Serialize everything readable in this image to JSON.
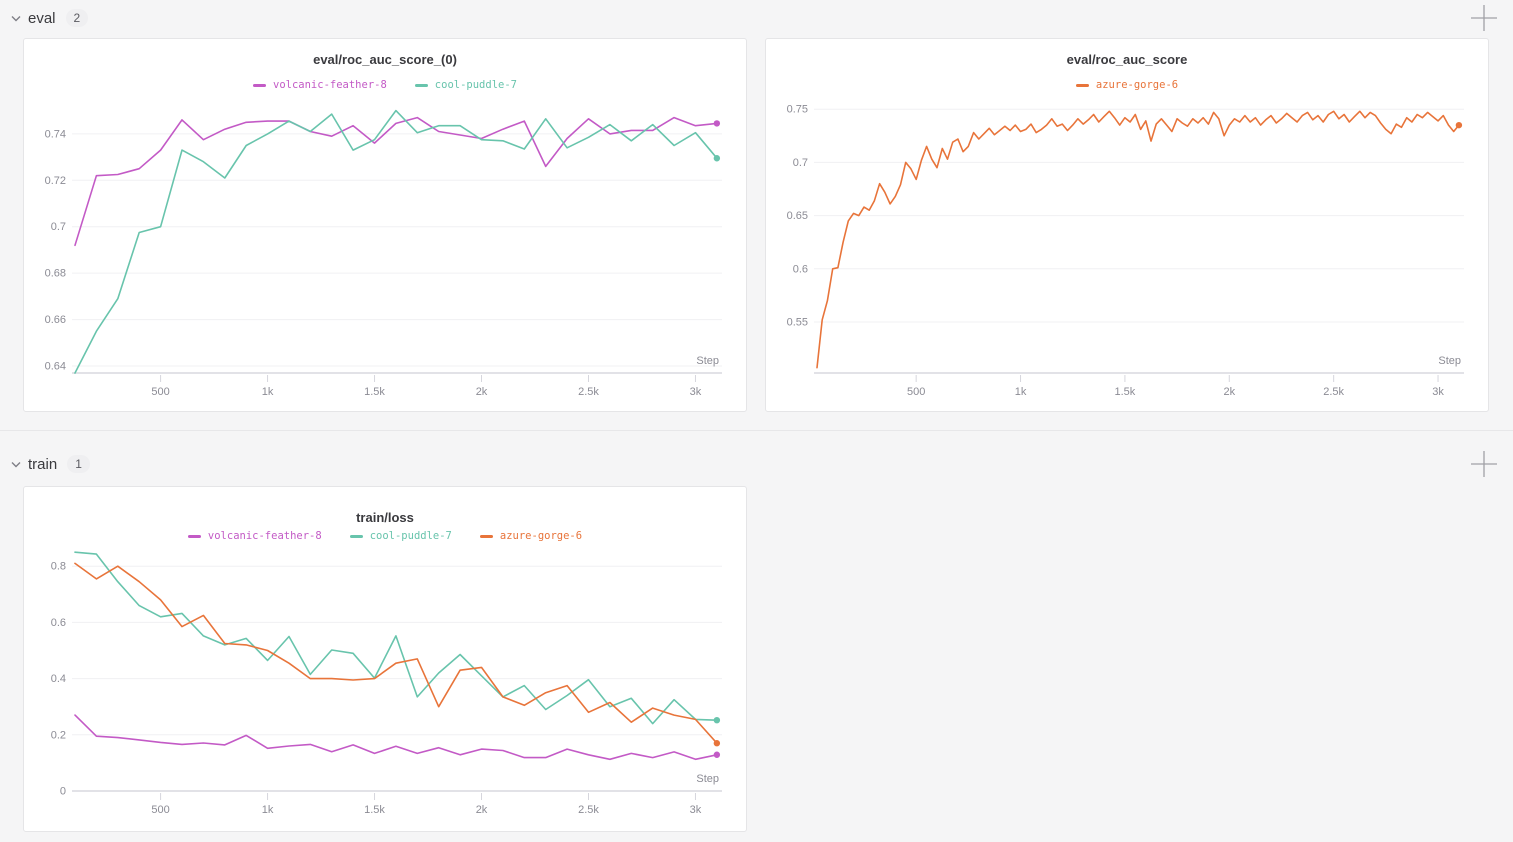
{
  "theme": {
    "page_bg": "#f5f5f6",
    "panel_bg": "#ffffff",
    "panel_border": "#e5e5e7",
    "grid_color": "#f0f0f3",
    "axis_color": "#e2e2e7",
    "tick_mark_color": "#d6d6dd",
    "tick_label_color": "#8b8b94",
    "title_color": "#3a3a3e",
    "badge_bg": "#efeff1",
    "icon_color": "#9b9ba1"
  },
  "icons": {
    "section_collapse": "chevron-down-icon",
    "section_add": "plus-icon"
  },
  "sections": [
    {
      "label": "eval",
      "count": "2"
    },
    {
      "label": "train",
      "count": "1"
    }
  ],
  "chart_data": [
    {
      "type": "line",
      "title": "eval/roc_auc_score_(0)",
      "xlabel": "Step",
      "ylabel": "",
      "grid": true,
      "legend_position": "top",
      "xlim": [
        100,
        3110
      ],
      "ylim": [
        0.637,
        0.752
      ],
      "xticks": [
        {
          "v": 500,
          "label": "500"
        },
        {
          "v": 1000,
          "label": "1k"
        },
        {
          "v": 1500,
          "label": "1.5k"
        },
        {
          "v": 2000,
          "label": "2k"
        },
        {
          "v": 2500,
          "label": "2.5k"
        },
        {
          "v": 3000,
          "label": "3k"
        }
      ],
      "yticks": [
        {
          "v": 0.64,
          "label": "0.64"
        },
        {
          "v": 0.66,
          "label": "0.66"
        },
        {
          "v": 0.68,
          "label": "0.68"
        },
        {
          "v": 0.7,
          "label": "0.7"
        },
        {
          "v": 0.72,
          "label": "0.72"
        },
        {
          "v": 0.74,
          "label": "0.74"
        }
      ],
      "x": [
        100,
        200,
        300,
        400,
        500,
        600,
        700,
        800,
        900,
        1000,
        1100,
        1200,
        1300,
        1400,
        1500,
        1600,
        1700,
        1800,
        1900,
        2000,
        2100,
        2200,
        2300,
        2400,
        2500,
        2600,
        2700,
        2800,
        2900,
        3000,
        3100
      ],
      "series": [
        {
          "name": "volcanic-feather-8",
          "color": "#C35AC6",
          "values": [
            0.692,
            0.722,
            0.7225,
            0.725,
            0.733,
            0.746,
            0.7375,
            0.742,
            0.745,
            0.7455,
            0.7455,
            0.741,
            0.739,
            0.7435,
            0.736,
            0.7445,
            0.747,
            0.741,
            0.7395,
            0.738,
            0.742,
            0.7455,
            0.726,
            0.738,
            0.7465,
            0.74,
            0.7415,
            0.7415,
            0.747,
            0.7435,
            0.7445
          ]
        },
        {
          "name": "cool-puddle-7",
          "color": "#68C4AC",
          "values": [
            0.637,
            0.655,
            0.669,
            0.6975,
            0.7,
            0.733,
            0.728,
            0.721,
            0.735,
            0.74,
            0.7455,
            0.741,
            0.7485,
            0.733,
            0.7375,
            0.75,
            0.7405,
            0.7435,
            0.7435,
            0.7375,
            0.737,
            0.7335,
            0.7465,
            0.734,
            0.7385,
            0.744,
            0.737,
            0.744,
            0.735,
            0.7405,
            0.7295
          ]
        }
      ]
    },
    {
      "type": "line",
      "title": "eval/roc_auc_score",
      "xlabel": "Step",
      "ylabel": "",
      "grid": true,
      "legend_position": "top",
      "xlim": [
        25,
        3110
      ],
      "ylim": [
        0.502,
        0.753
      ],
      "xticks": [
        {
          "v": 500,
          "label": "500"
        },
        {
          "v": 1000,
          "label": "1k"
        },
        {
          "v": 1500,
          "label": "1.5k"
        },
        {
          "v": 2000,
          "label": "2k"
        },
        {
          "v": 2500,
          "label": "2.5k"
        },
        {
          "v": 3000,
          "label": "3k"
        }
      ],
      "yticks": [
        {
          "v": 0.55,
          "label": "0.55"
        },
        {
          "v": 0.6,
          "label": "0.6"
        },
        {
          "v": 0.65,
          "label": "0.65"
        },
        {
          "v": 0.7,
          "label": "0.7"
        },
        {
          "v": 0.75,
          "label": "0.75"
        }
      ],
      "x": [
        25,
        50,
        75,
        100,
        125,
        150,
        175,
        200,
        225,
        250,
        275,
        300,
        325,
        350,
        375,
        400,
        425,
        450,
        475,
        500,
        525,
        550,
        575,
        600,
        625,
        650,
        675,
        700,
        725,
        750,
        775,
        800,
        825,
        850,
        875,
        900,
        925,
        950,
        975,
        1000,
        1025,
        1050,
        1075,
        1100,
        1125,
        1150,
        1175,
        1200,
        1225,
        1250,
        1275,
        1300,
        1325,
        1350,
        1375,
        1400,
        1425,
        1450,
        1475,
        1500,
        1525,
        1550,
        1575,
        1600,
        1625,
        1650,
        1675,
        1700,
        1725,
        1750,
        1775,
        1800,
        1825,
        1850,
        1875,
        1900,
        1925,
        1950,
        1975,
        2000,
        2025,
        2050,
        2075,
        2100,
        2125,
        2150,
        2175,
        2200,
        2225,
        2250,
        2275,
        2300,
        2325,
        2350,
        2375,
        2400,
        2425,
        2450,
        2475,
        2500,
        2525,
        2550,
        2575,
        2600,
        2625,
        2650,
        2675,
        2700,
        2725,
        2750,
        2775,
        2800,
        2825,
        2850,
        2875,
        2900,
        2925,
        2950,
        2975,
        3000,
        3025,
        3050,
        3075,
        3100
      ],
      "series": [
        {
          "name": "azure-gorge-6",
          "color": "#E8743A",
          "values": [
            0.507,
            0.552,
            0.57,
            0.6,
            0.601,
            0.625,
            0.645,
            0.652,
            0.65,
            0.658,
            0.655,
            0.664,
            0.68,
            0.672,
            0.661,
            0.668,
            0.679,
            0.7,
            0.694,
            0.684,
            0.702,
            0.715,
            0.703,
            0.695,
            0.713,
            0.703,
            0.719,
            0.722,
            0.71,
            0.715,
            0.728,
            0.722,
            0.727,
            0.732,
            0.726,
            0.73,
            0.734,
            0.73,
            0.735,
            0.729,
            0.731,
            0.736,
            0.728,
            0.731,
            0.735,
            0.741,
            0.734,
            0.736,
            0.73,
            0.735,
            0.741,
            0.736,
            0.74,
            0.745,
            0.738,
            0.743,
            0.748,
            0.742,
            0.735,
            0.742,
            0.738,
            0.745,
            0.731,
            0.739,
            0.72,
            0.736,
            0.741,
            0.735,
            0.729,
            0.741,
            0.737,
            0.734,
            0.741,
            0.737,
            0.742,
            0.736,
            0.747,
            0.741,
            0.725,
            0.735,
            0.741,
            0.738,
            0.744,
            0.738,
            0.742,
            0.735,
            0.74,
            0.744,
            0.737,
            0.741,
            0.746,
            0.742,
            0.738,
            0.744,
            0.747,
            0.74,
            0.744,
            0.738,
            0.745,
            0.748,
            0.741,
            0.745,
            0.738,
            0.743,
            0.748,
            0.742,
            0.747,
            0.744,
            0.737,
            0.731,
            0.727,
            0.736,
            0.733,
            0.742,
            0.738,
            0.745,
            0.742,
            0.747,
            0.743,
            0.739,
            0.744,
            0.735,
            0.729,
            0.735
          ]
        }
      ]
    },
    {
      "type": "line",
      "title": "train/loss",
      "xlabel": "Step",
      "ylabel": "",
      "grid": true,
      "legend_position": "top",
      "xlim": [
        100,
        3110
      ],
      "ylim": [
        0,
        0.872
      ],
      "xticks": [
        {
          "v": 500,
          "label": "500"
        },
        {
          "v": 1000,
          "label": "1k"
        },
        {
          "v": 1500,
          "label": "1.5k"
        },
        {
          "v": 2000,
          "label": "2k"
        },
        {
          "v": 2500,
          "label": "2.5k"
        },
        {
          "v": 3000,
          "label": "3k"
        }
      ],
      "yticks": [
        {
          "v": 0,
          "label": "0"
        },
        {
          "v": 0.2,
          "label": "0.2"
        },
        {
          "v": 0.4,
          "label": "0.4"
        },
        {
          "v": 0.6,
          "label": "0.6"
        },
        {
          "v": 0.8,
          "label": "0.8"
        }
      ],
      "x": [
        100,
        200,
        300,
        400,
        500,
        600,
        700,
        800,
        900,
        1000,
        1100,
        1200,
        1300,
        1400,
        1500,
        1600,
        1700,
        1800,
        1900,
        2000,
        2100,
        2200,
        2300,
        2400,
        2500,
        2600,
        2700,
        2800,
        2900,
        3000,
        3100
      ],
      "series": [
        {
          "name": "volcanic-feather-8",
          "color": "#C35AC6",
          "values": [
            0.27,
            0.195,
            0.19,
            0.182,
            0.173,
            0.166,
            0.171,
            0.164,
            0.198,
            0.152,
            0.16,
            0.166,
            0.14,
            0.164,
            0.134,
            0.159,
            0.134,
            0.154,
            0.129,
            0.149,
            0.144,
            0.119,
            0.119,
            0.149,
            0.129,
            0.113,
            0.134,
            0.119,
            0.139,
            0.113,
            0.129
          ]
        },
        {
          "name": "cool-puddle-7",
          "color": "#68C4AC",
          "values": [
            0.85,
            0.843,
            0.745,
            0.66,
            0.62,
            0.632,
            0.552,
            0.52,
            0.543,
            0.465,
            0.55,
            0.415,
            0.502,
            0.49,
            0.402,
            0.552,
            0.335,
            0.42,
            0.486,
            0.41,
            0.335,
            0.375,
            0.29,
            0.34,
            0.396,
            0.3,
            0.33,
            0.24,
            0.325,
            0.255,
            0.252
          ]
        },
        {
          "name": "azure-gorge-6",
          "color": "#E8743A",
          "values": [
            0.81,
            0.755,
            0.8,
            0.745,
            0.68,
            0.585,
            0.625,
            0.525,
            0.52,
            0.5,
            0.455,
            0.4,
            0.4,
            0.395,
            0.4,
            0.455,
            0.47,
            0.3,
            0.43,
            0.44,
            0.335,
            0.305,
            0.35,
            0.375,
            0.28,
            0.315,
            0.245,
            0.295,
            0.27,
            0.255,
            0.17
          ]
        }
      ]
    }
  ]
}
